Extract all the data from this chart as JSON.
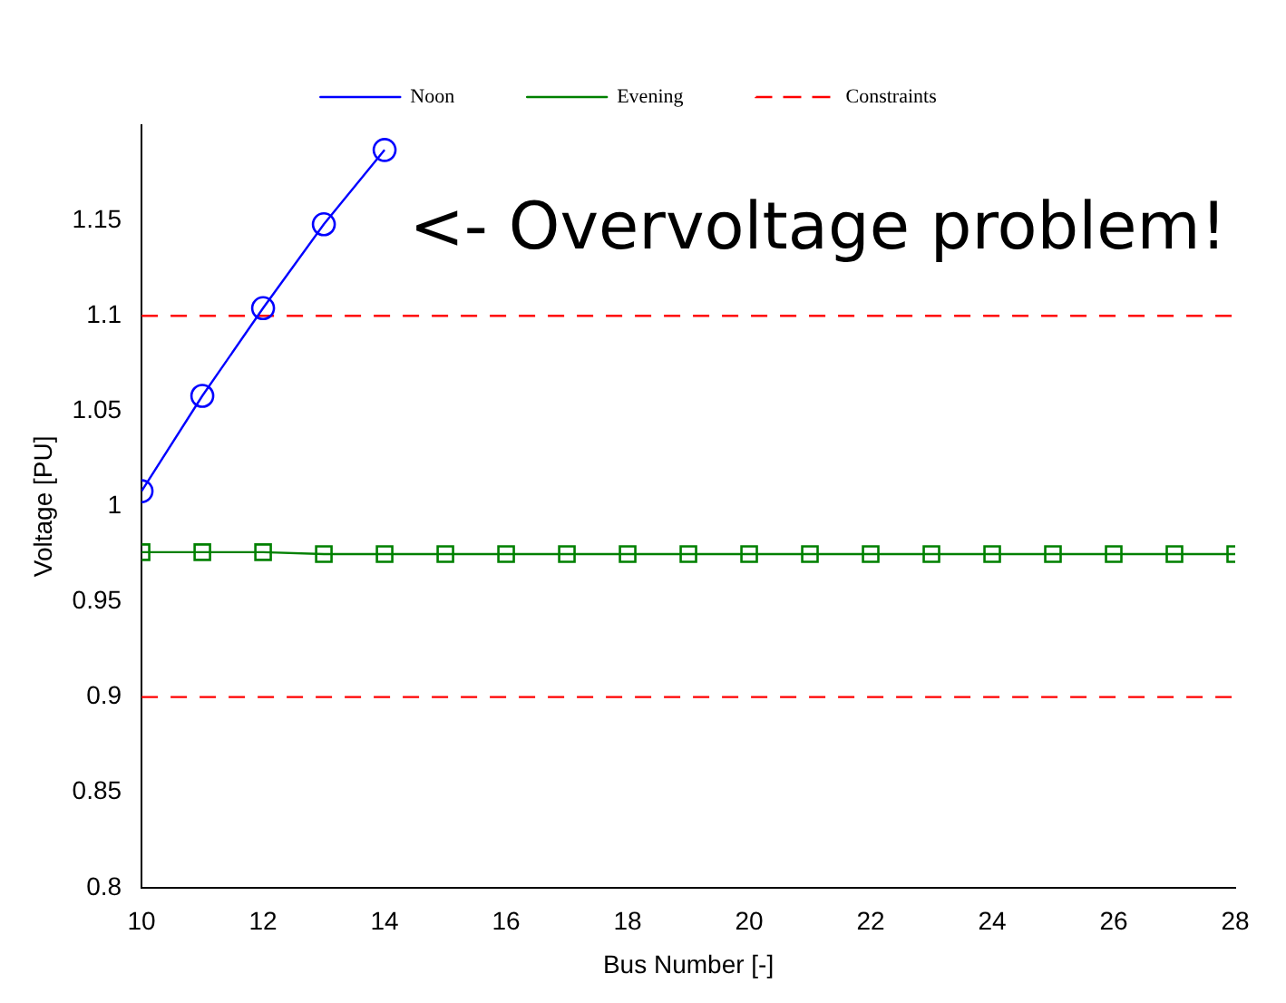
{
  "chart_data": {
    "type": "line",
    "xlabel": "Bus Number [-]",
    "ylabel": "Voltage [PU]",
    "annotations": [
      "<- Overvoltage problem!"
    ],
    "xlim": [
      10,
      28
    ],
    "xticks": [
      10,
      12,
      14,
      16,
      18,
      20,
      22,
      24,
      26,
      28
    ],
    "ylim": [
      0.8,
      1.2
    ],
    "yticks": [
      0.8,
      0.85,
      0.9,
      0.95,
      1,
      1.05,
      1.1,
      1.15
    ],
    "grid": false,
    "legend": "top",
    "x": [
      10,
      11,
      12,
      13,
      14,
      15,
      16,
      17,
      18,
      19,
      20,
      21,
      22,
      23,
      24,
      25,
      26,
      27,
      28
    ],
    "series": [
      {
        "name": "Noon",
        "color": "#0000ff",
        "marker": "circle",
        "values": [
          1.008,
          1.058,
          1.104,
          1.148,
          1.187,
          null,
          null,
          null,
          null,
          null,
          null,
          null,
          null,
          null,
          null,
          null,
          null,
          null,
          null
        ]
      },
      {
        "name": "Evening",
        "color": "#008000",
        "marker": "square",
        "values": [
          0.976,
          0.976,
          0.976,
          0.975,
          0.975,
          0.975,
          0.975,
          0.975,
          0.975,
          0.975,
          0.975,
          0.975,
          0.975,
          0.975,
          0.975,
          0.975,
          0.975,
          0.975,
          0.975
        ]
      }
    ],
    "ref_lines": [
      {
        "axis": "y",
        "value": 1.1,
        "label": "Constraints",
        "color": "#ff0000",
        "line_style": "dashed"
      },
      {
        "axis": "y",
        "value": 0.9,
        "color": "#ff0000",
        "line_style": "dashed"
      }
    ]
  }
}
